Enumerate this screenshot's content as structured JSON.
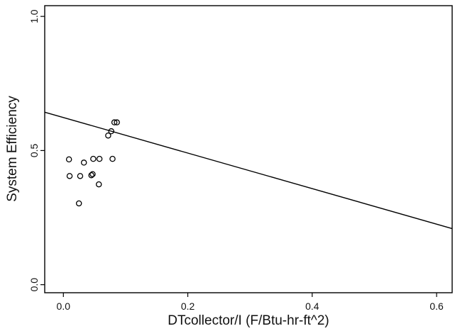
{
  "chart_data": {
    "type": "scatter",
    "title": "",
    "xlabel": "DTcollector/I (F/Btu-hr-ft^2)",
    "ylabel": "System Efficiency",
    "xlim": [
      -0.03,
      0.625
    ],
    "ylim": [
      -0.03,
      1.04
    ],
    "xticks": [
      {
        "value": 0.0,
        "label": "0.0"
      },
      {
        "value": 0.2,
        "label": "0.2"
      },
      {
        "value": 0.4,
        "label": "0.4"
      },
      {
        "value": 0.6,
        "label": "0.6"
      }
    ],
    "yticks": [
      {
        "value": 0.0,
        "label": "0.0"
      },
      {
        "value": 0.5,
        "label": "0.5"
      },
      {
        "value": 1.0,
        "label": "1.0"
      }
    ],
    "points": [
      {
        "x": 0.009,
        "y": 0.467
      },
      {
        "x": 0.01,
        "y": 0.405
      },
      {
        "x": 0.025,
        "y": 0.303
      },
      {
        "x": 0.027,
        "y": 0.405
      },
      {
        "x": 0.033,
        "y": 0.455
      },
      {
        "x": 0.045,
        "y": 0.408
      },
      {
        "x": 0.047,
        "y": 0.412
      },
      {
        "x": 0.048,
        "y": 0.469
      },
      {
        "x": 0.057,
        "y": 0.374
      },
      {
        "x": 0.058,
        "y": 0.469
      },
      {
        "x": 0.072,
        "y": 0.556
      },
      {
        "x": 0.077,
        "y": 0.572
      },
      {
        "x": 0.079,
        "y": 0.469
      },
      {
        "x": 0.082,
        "y": 0.605
      },
      {
        "x": 0.086,
        "y": 0.605
      }
    ],
    "fit_line": {
      "x": [
        -0.03,
        0.625
      ],
      "y": [
        0.643,
        0.209
      ]
    },
    "grid": false,
    "legend": "none"
  }
}
